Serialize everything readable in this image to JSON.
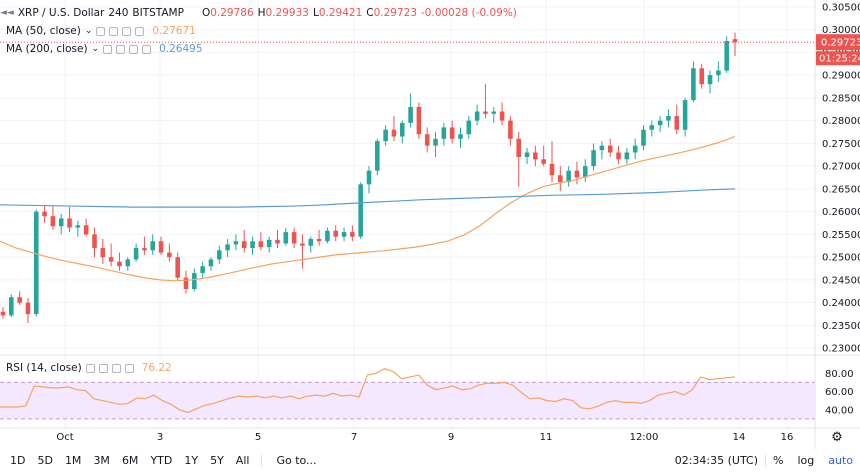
{
  "header": {
    "symbol": "XRP / U.S. Dollar",
    "interval": "240",
    "exchange": "BITSTAMP",
    "o_label": "O",
    "o_val": "0.29786",
    "h_label": "H",
    "h_val": "0.29933",
    "l_label": "L",
    "l_val": "0.29421",
    "c_label": "C",
    "c_val": "0.29723",
    "change": "-0.00028 (-0.09%)"
  },
  "indicators": {
    "ma50": {
      "label": "MA (50, close)",
      "value": "0.27671",
      "color": "#f7a35c"
    },
    "ma200": {
      "label": "MA (200, close)",
      "value": "0.26495",
      "color": "#5b9bd5"
    },
    "rsi": {
      "label": "RSI (14, close)",
      "value": "76.22",
      "color": "#f7a35c"
    }
  },
  "price_axis": {
    "ticks": [
      "0.30500",
      "0.30000",
      "0.29500",
      "0.29000",
      "0.28500",
      "0.28000",
      "0.27500",
      "0.27000",
      "0.26500",
      "0.26000",
      "0.25500",
      "0.25000",
      "0.24500",
      "0.24000",
      "0.23500",
      "0.23000"
    ],
    "last_price": "0.29723",
    "countdown": "01:25:24"
  },
  "rsi_axis": {
    "ticks": [
      "80.00",
      "60.00",
      "40.00"
    ]
  },
  "time_axis": {
    "ticks": [
      "Oct",
      "3",
      "5",
      "7",
      "9",
      "11",
      "12:00",
      "14",
      "16"
    ]
  },
  "toolbar": {
    "timeframes": [
      "1D",
      "5D",
      "1M",
      "3M",
      "6M",
      "YTD",
      "1Y",
      "5Y",
      "All"
    ],
    "goto": "Go to...",
    "clock": "02:34:35 (UTC)",
    "percent": "%",
    "log": "log",
    "auto": "auto"
  },
  "colors": {
    "up": "#26a69a",
    "down": "#ef5350",
    "grid": "#f0f3fa",
    "rsi_band": "#f3e8ff",
    "rsi_band_border": "#c39bd3"
  },
  "chart_data": {
    "type": "candlestick",
    "title": "XRP / U.S. Dollar, 240, BITSTAMP",
    "ylim": [
      0.2285,
      0.3065
    ],
    "x_ticks": [
      "Oct",
      "3",
      "5",
      "7",
      "9",
      "11",
      "12:00",
      "14",
      "16"
    ],
    "candles": [
      [
        0.238,
        0.239,
        0.2365,
        0.2372
      ],
      [
        0.2372,
        0.2418,
        0.2368,
        0.2412
      ],
      [
        0.2412,
        0.2425,
        0.2395,
        0.24
      ],
      [
        0.24,
        0.241,
        0.2355,
        0.2375
      ],
      [
        0.2375,
        0.2605,
        0.237,
        0.26
      ],
      [
        0.26,
        0.2615,
        0.2575,
        0.259
      ],
      [
        0.259,
        0.2612,
        0.256,
        0.2568
      ],
      [
        0.2568,
        0.2595,
        0.255,
        0.2585
      ],
      [
        0.2585,
        0.261,
        0.2555,
        0.2565
      ],
      [
        0.2565,
        0.258,
        0.2545,
        0.257
      ],
      [
        0.257,
        0.2585,
        0.2545,
        0.255
      ],
      [
        0.255,
        0.2565,
        0.25,
        0.252
      ],
      [
        0.252,
        0.254,
        0.2485,
        0.25
      ],
      [
        0.25,
        0.253,
        0.248,
        0.249
      ],
      [
        0.249,
        0.251,
        0.247,
        0.248
      ],
      [
        0.248,
        0.25,
        0.247,
        0.2495
      ],
      [
        0.2495,
        0.253,
        0.249,
        0.252
      ],
      [
        0.252,
        0.2545,
        0.2505,
        0.2515
      ],
      [
        0.2515,
        0.255,
        0.2505,
        0.2535
      ],
      [
        0.2535,
        0.2545,
        0.2505,
        0.251
      ],
      [
        0.251,
        0.253,
        0.249,
        0.25
      ],
      [
        0.25,
        0.251,
        0.245,
        0.2455
      ],
      [
        0.2455,
        0.247,
        0.242,
        0.243
      ],
      [
        0.243,
        0.2475,
        0.2425,
        0.2465
      ],
      [
        0.2465,
        0.249,
        0.2455,
        0.248
      ],
      [
        0.248,
        0.25,
        0.247,
        0.2495
      ],
      [
        0.2495,
        0.2525,
        0.2485,
        0.2515
      ],
      [
        0.2515,
        0.254,
        0.25,
        0.2528
      ],
      [
        0.2528,
        0.255,
        0.2515,
        0.2535
      ],
      [
        0.2535,
        0.256,
        0.251,
        0.252
      ],
      [
        0.252,
        0.2545,
        0.2505,
        0.2535
      ],
      [
        0.2535,
        0.2555,
        0.2515,
        0.2522
      ],
      [
        0.2522,
        0.2545,
        0.251,
        0.2538
      ],
      [
        0.2538,
        0.256,
        0.252,
        0.253
      ],
      [
        0.253,
        0.2565,
        0.2525,
        0.2555
      ],
      [
        0.2555,
        0.2565,
        0.252,
        0.253
      ],
      [
        0.253,
        0.255,
        0.2475,
        0.2525
      ],
      [
        0.2525,
        0.2545,
        0.251,
        0.254
      ],
      [
        0.254,
        0.256,
        0.2525,
        0.2535
      ],
      [
        0.2535,
        0.2565,
        0.253,
        0.2558
      ],
      [
        0.2558,
        0.257,
        0.2535,
        0.2545
      ],
      [
        0.2545,
        0.2565,
        0.2535,
        0.2555
      ],
      [
        0.2555,
        0.257,
        0.2535,
        0.2545
      ],
      [
        0.2545,
        0.2665,
        0.254,
        0.266
      ],
      [
        0.266,
        0.27,
        0.264,
        0.269
      ],
      [
        0.269,
        0.276,
        0.268,
        0.2755
      ],
      [
        0.2755,
        0.279,
        0.2745,
        0.278
      ],
      [
        0.278,
        0.281,
        0.2755,
        0.2765
      ],
      [
        0.2765,
        0.28,
        0.275,
        0.2795
      ],
      [
        0.2795,
        0.286,
        0.2785,
        0.283
      ],
      [
        0.283,
        0.284,
        0.276,
        0.277
      ],
      [
        0.277,
        0.2785,
        0.273,
        0.2745
      ],
      [
        0.2745,
        0.2775,
        0.272,
        0.276
      ],
      [
        0.276,
        0.2795,
        0.2745,
        0.2785
      ],
      [
        0.2785,
        0.28,
        0.275,
        0.276
      ],
      [
        0.276,
        0.2785,
        0.274,
        0.277
      ],
      [
        0.277,
        0.281,
        0.276,
        0.28
      ],
      [
        0.28,
        0.2835,
        0.279,
        0.282
      ],
      [
        0.282,
        0.288,
        0.2805,
        0.2815
      ],
      [
        0.2815,
        0.283,
        0.2795,
        0.282
      ],
      [
        0.282,
        0.284,
        0.279,
        0.28
      ],
      [
        0.28,
        0.281,
        0.2745,
        0.276
      ],
      [
        0.276,
        0.2775,
        0.2655,
        0.272
      ],
      [
        0.272,
        0.274,
        0.2705,
        0.273
      ],
      [
        0.273,
        0.2745,
        0.27,
        0.2715
      ],
      [
        0.2715,
        0.2745,
        0.27,
        0.2705
      ],
      [
        0.2705,
        0.2755,
        0.2665,
        0.268
      ],
      [
        0.268,
        0.27,
        0.2645,
        0.2665
      ],
      [
        0.2665,
        0.27,
        0.2655,
        0.269
      ],
      [
        0.269,
        0.271,
        0.266,
        0.2675
      ],
      [
        0.2675,
        0.2715,
        0.2665,
        0.27
      ],
      [
        0.27,
        0.275,
        0.269,
        0.2735
      ],
      [
        0.2735,
        0.2755,
        0.2715,
        0.2745
      ],
      [
        0.2745,
        0.276,
        0.272,
        0.273
      ],
      [
        0.273,
        0.2745,
        0.2705,
        0.2715
      ],
      [
        0.2715,
        0.274,
        0.2705,
        0.273
      ],
      [
        0.273,
        0.276,
        0.2715,
        0.2745
      ],
      [
        0.2745,
        0.279,
        0.2735,
        0.278
      ],
      [
        0.278,
        0.28,
        0.2765,
        0.279
      ],
      [
        0.279,
        0.281,
        0.2775,
        0.28
      ],
      [
        0.28,
        0.2825,
        0.2785,
        0.281
      ],
      [
        0.281,
        0.2835,
        0.277,
        0.278
      ],
      [
        0.278,
        0.285,
        0.2765,
        0.2845
      ],
      [
        0.2845,
        0.293,
        0.284,
        0.2915
      ],
      [
        0.2915,
        0.2925,
        0.287,
        0.288
      ],
      [
        0.288,
        0.291,
        0.286,
        0.29
      ],
      [
        0.29,
        0.293,
        0.2885,
        0.291
      ],
      [
        0.291,
        0.2985,
        0.2905,
        0.2975
      ],
      [
        0.2979,
        0.2993,
        0.2942,
        0.2972
      ]
    ],
    "ma50": [
      0.2535,
      0.252,
      0.251,
      0.25,
      0.2492,
      0.2485,
      0.2478,
      0.247,
      0.2462,
      0.2455,
      0.245,
      0.2448,
      0.245,
      0.2455,
      0.2462,
      0.247,
      0.2478,
      0.2485,
      0.249,
      0.2495,
      0.25,
      0.2505,
      0.2508,
      0.2511,
      0.2514,
      0.2518,
      0.2522,
      0.2528,
      0.2535,
      0.2548,
      0.2568,
      0.2595,
      0.262,
      0.264,
      0.2655,
      0.2663,
      0.267,
      0.268,
      0.269,
      0.27,
      0.271,
      0.2718,
      0.2725,
      0.2733,
      0.2742,
      0.2752,
      0.2765
    ],
    "ma200": [
      0.2615,
      0.2614,
      0.2613,
      0.2612,
      0.2611,
      0.261,
      0.261,
      0.261,
      0.261,
      0.261,
      0.2611,
      0.2612,
      0.2614,
      0.2617,
      0.262,
      0.2623,
      0.2626,
      0.2628,
      0.263,
      0.2632,
      0.2634,
      0.2636,
      0.2637,
      0.2638,
      0.264,
      0.2642,
      0.2645,
      0.2648,
      0.265
    ],
    "rsi": [
      43,
      43,
      43,
      44,
      66,
      65,
      64,
      64,
      65,
      62,
      61,
      52,
      50,
      48,
      46,
      47,
      53,
      52,
      56,
      50,
      46,
      40,
      37,
      41,
      45,
      47,
      50,
      53,
      55,
      54,
      55,
      53,
      55,
      53,
      55,
      52,
      55,
      56,
      55,
      58,
      55,
      56,
      54,
      78,
      80,
      85,
      82,
      74,
      76,
      78,
      67,
      62,
      64,
      66,
      62,
      63,
      67,
      69,
      69,
      70,
      67,
      59,
      52,
      53,
      50,
      49,
      52,
      50,
      42,
      41,
      44,
      48,
      50,
      48,
      48,
      47,
      50,
      56,
      58,
      60,
      56,
      62,
      76,
      73,
      74,
      75,
      76
    ]
  }
}
